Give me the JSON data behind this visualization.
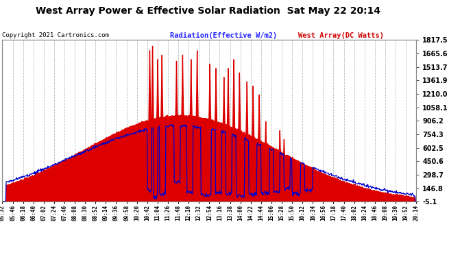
{
  "title": "West Array Power & Effective Solar Radiation  Sat May 22 20:14",
  "copyright": "Copyright 2021 Cartronics.com",
  "legend_radiation": "Radiation(Effective W/m2)",
  "legend_west": "West Array(DC Watts)",
  "ylabel_right_ticks": [
    1817.5,
    1665.6,
    1513.7,
    1361.9,
    1210.0,
    1058.1,
    906.2,
    754.3,
    602.5,
    450.6,
    298.7,
    146.8,
    -5.1
  ],
  "ymin": -5.1,
  "ymax": 1817.5,
  "background_color": "#ffffff",
  "plot_bg_color": "#ffffff",
  "grid_color": "#aaaaaa",
  "fill_color": "#dd0000",
  "line_color_radiation": "#0000cc",
  "title_color": "#000000",
  "tick_label_color": "#000000",
  "legend_radiation_color": "#2222ff",
  "legend_west_color": "#cc0000",
  "copyright_color": "#000000",
  "n_points": 882,
  "peak_t": 0.43,
  "sigma": 0.23,
  "base_scale": 1050,
  "west_scale": 0.92
}
